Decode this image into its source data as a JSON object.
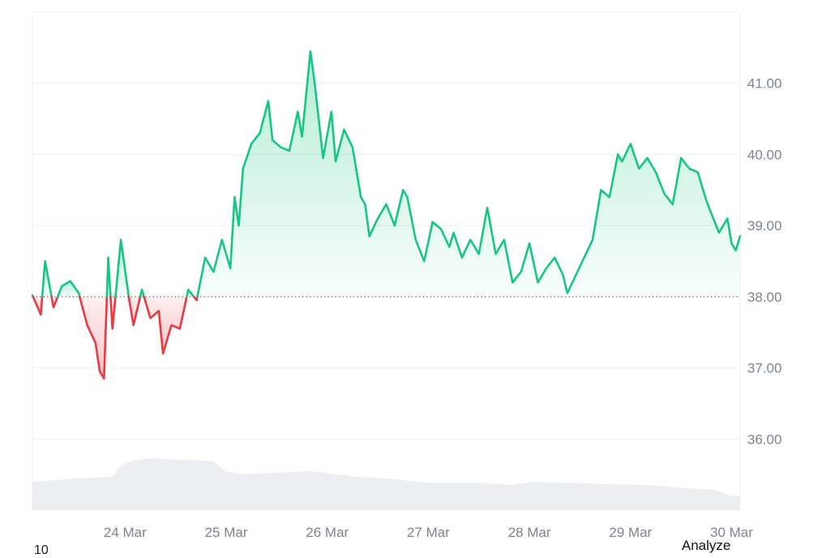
{
  "chart_data": {
    "type": "area",
    "title": "",
    "xlabel": "",
    "ylabel": "",
    "baseline": 38.0,
    "ylim": [
      35.0,
      42.0
    ],
    "y_ticks": [
      "36.00",
      "37.00",
      "38.00",
      "39.00",
      "40.00",
      "41.00"
    ],
    "y_tick_values": [
      36,
      37,
      38,
      39,
      40,
      41
    ],
    "x_ticks": [
      "24 Mar",
      "25 Mar",
      "26 Mar",
      "27 Mar",
      "28 Mar",
      "29 Mar",
      "30 Mar"
    ],
    "x_tick_values": [
      "2024-03-24",
      "2024-03-25",
      "2024-03-26",
      "2024-03-27",
      "2024-03-28",
      "2024-03-29",
      "2024-03-30"
    ],
    "x_range": [
      "2024-03-23 02:00",
      "2024-03-30 02:00"
    ],
    "above_color": "#16c784",
    "below_color": "#ea3943",
    "volume_color": "#eceef1",
    "price": [
      [
        "2024-03-23 02:00",
        38.02
      ],
      [
        "2024-03-23 04:00",
        37.75
      ],
      [
        "2024-03-23 05:00",
        38.5
      ],
      [
        "2024-03-23 07:00",
        37.85
      ],
      [
        "2024-03-23 09:00",
        38.15
      ],
      [
        "2024-03-23 11:00",
        38.22
      ],
      [
        "2024-03-23 13:00",
        38.05
      ],
      [
        "2024-03-23 15:00",
        37.6
      ],
      [
        "2024-03-23 17:00",
        37.35
      ],
      [
        "2024-03-23 18:00",
        36.95
      ],
      [
        "2024-03-23 19:00",
        36.85
      ],
      [
        "2024-03-23 20:00",
        38.55
      ],
      [
        "2024-03-23 21:00",
        37.55
      ],
      [
        "2024-03-23 23:00",
        38.8
      ],
      [
        "2024-03-24 01:00",
        37.95
      ],
      [
        "2024-03-24 02:00",
        37.6
      ],
      [
        "2024-03-24 04:00",
        38.1
      ],
      [
        "2024-03-24 06:00",
        37.7
      ],
      [
        "2024-03-24 08:00",
        37.8
      ],
      [
        "2024-03-24 09:00",
        37.2
      ],
      [
        "2024-03-24 11:00",
        37.6
      ],
      [
        "2024-03-24 13:00",
        37.55
      ],
      [
        "2024-03-24 15:00",
        38.1
      ],
      [
        "2024-03-24 17:00",
        37.95
      ],
      [
        "2024-03-24 19:00",
        38.55
      ],
      [
        "2024-03-24 21:00",
        38.35
      ],
      [
        "2024-03-24 23:00",
        38.8
      ],
      [
        "2024-03-25 01:00",
        38.4
      ],
      [
        "2024-03-25 02:00",
        39.4
      ],
      [
        "2024-03-25 03:00",
        39.0
      ],
      [
        "2024-03-25 04:00",
        39.8
      ],
      [
        "2024-03-25 06:00",
        40.15
      ],
      [
        "2024-03-25 08:00",
        40.3
      ],
      [
        "2024-03-25 10:00",
        40.75
      ],
      [
        "2024-03-25 11:00",
        40.2
      ],
      [
        "2024-03-25 13:00",
        40.1
      ],
      [
        "2024-03-25 15:00",
        40.05
      ],
      [
        "2024-03-25 17:00",
        40.6
      ],
      [
        "2024-03-25 18:00",
        40.25
      ],
      [
        "2024-03-25 20:00",
        41.45
      ],
      [
        "2024-03-25 21:00",
        41.0
      ],
      [
        "2024-03-25 23:00",
        39.95
      ],
      [
        "2024-03-26 01:00",
        40.6
      ],
      [
        "2024-03-26 02:00",
        39.9
      ],
      [
        "2024-03-26 04:00",
        40.35
      ],
      [
        "2024-03-26 06:00",
        40.1
      ],
      [
        "2024-03-26 08:00",
        39.4
      ],
      [
        "2024-03-26 09:00",
        39.3
      ],
      [
        "2024-03-26 10:00",
        38.85
      ],
      [
        "2024-03-26 12:00",
        39.1
      ],
      [
        "2024-03-26 14:00",
        39.3
      ],
      [
        "2024-03-26 16:00",
        39.0
      ],
      [
        "2024-03-26 18:00",
        39.5
      ],
      [
        "2024-03-26 19:00",
        39.4
      ],
      [
        "2024-03-26 21:00",
        38.8
      ],
      [
        "2024-03-26 23:00",
        38.5
      ],
      [
        "2024-03-27 01:00",
        39.05
      ],
      [
        "2024-03-27 03:00",
        38.95
      ],
      [
        "2024-03-27 05:00",
        38.7
      ],
      [
        "2024-03-27 06:00",
        38.9
      ],
      [
        "2024-03-27 08:00",
        38.55
      ],
      [
        "2024-03-27 10:00",
        38.8
      ],
      [
        "2024-03-27 12:00",
        38.6
      ],
      [
        "2024-03-27 14:00",
        39.25
      ],
      [
        "2024-03-27 16:00",
        38.6
      ],
      [
        "2024-03-27 18:00",
        38.8
      ],
      [
        "2024-03-27 20:00",
        38.2
      ],
      [
        "2024-03-27 22:00",
        38.35
      ],
      [
        "2024-03-28 00:00",
        38.75
      ],
      [
        "2024-03-28 02:00",
        38.2
      ],
      [
        "2024-03-28 04:00",
        38.4
      ],
      [
        "2024-03-28 06:00",
        38.55
      ],
      [
        "2024-03-28 08:00",
        38.3
      ],
      [
        "2024-03-28 09:00",
        38.05
      ],
      [
        "2024-03-28 11:00",
        38.3
      ],
      [
        "2024-03-28 13:00",
        38.55
      ],
      [
        "2024-03-28 15:00",
        38.8
      ],
      [
        "2024-03-28 17:00",
        39.5
      ],
      [
        "2024-03-28 19:00",
        39.4
      ],
      [
        "2024-03-28 21:00",
        40.0
      ],
      [
        "2024-03-28 22:00",
        39.9
      ],
      [
        "2024-03-29 00:00",
        40.15
      ],
      [
        "2024-03-29 02:00",
        39.8
      ],
      [
        "2024-03-29 04:00",
        39.95
      ],
      [
        "2024-03-29 06:00",
        39.75
      ],
      [
        "2024-03-29 08:00",
        39.45
      ],
      [
        "2024-03-29 10:00",
        39.3
      ],
      [
        "2024-03-29 12:00",
        39.95
      ],
      [
        "2024-03-29 14:00",
        39.8
      ],
      [
        "2024-03-29 16:00",
        39.75
      ],
      [
        "2024-03-29 18:00",
        39.35
      ],
      [
        "2024-03-29 19:00",
        39.2
      ],
      [
        "2024-03-29 21:00",
        38.9
      ],
      [
        "2024-03-29 23:00",
        39.1
      ],
      [
        "2024-03-30 00:00",
        38.75
      ],
      [
        "2024-03-30 01:00",
        38.65
      ],
      [
        "2024-03-30 02:00",
        38.85
      ]
    ],
    "volume": [
      [
        "2024-03-23 02:00",
        0.39
      ],
      [
        "2024-03-23 10:00",
        0.43
      ],
      [
        "2024-03-23 16:00",
        0.45
      ],
      [
        "2024-03-23 21:00",
        0.46
      ],
      [
        "2024-03-23 23:00",
        0.62
      ],
      [
        "2024-03-24 02:00",
        0.69
      ],
      [
        "2024-03-24 06:00",
        0.72
      ],
      [
        "2024-03-24 12:00",
        0.7
      ],
      [
        "2024-03-24 18:00",
        0.69
      ],
      [
        "2024-03-24 21:00",
        0.68
      ],
      [
        "2024-03-25 00:00",
        0.53
      ],
      [
        "2024-03-25 04:00",
        0.5
      ],
      [
        "2024-03-25 12:00",
        0.52
      ],
      [
        "2024-03-25 20:00",
        0.54
      ],
      [
        "2024-03-26 06:00",
        0.47
      ],
      [
        "2024-03-26 16:00",
        0.43
      ],
      [
        "2024-03-27 00:00",
        0.38
      ],
      [
        "2024-03-27 12:00",
        0.38
      ],
      [
        "2024-03-27 20:00",
        0.35
      ],
      [
        "2024-03-28 00:00",
        0.39
      ],
      [
        "2024-03-28 10:00",
        0.38
      ],
      [
        "2024-03-28 20:00",
        0.36
      ],
      [
        "2024-03-29 04:00",
        0.35
      ],
      [
        "2024-03-29 12:00",
        0.31
      ],
      [
        "2024-03-29 20:00",
        0.28
      ],
      [
        "2024-03-30 00:00",
        0.2
      ],
      [
        "2024-03-30 02:00",
        0.2
      ]
    ]
  },
  "footer": {
    "left_text": "10",
    "right_text": "Analyze"
  }
}
